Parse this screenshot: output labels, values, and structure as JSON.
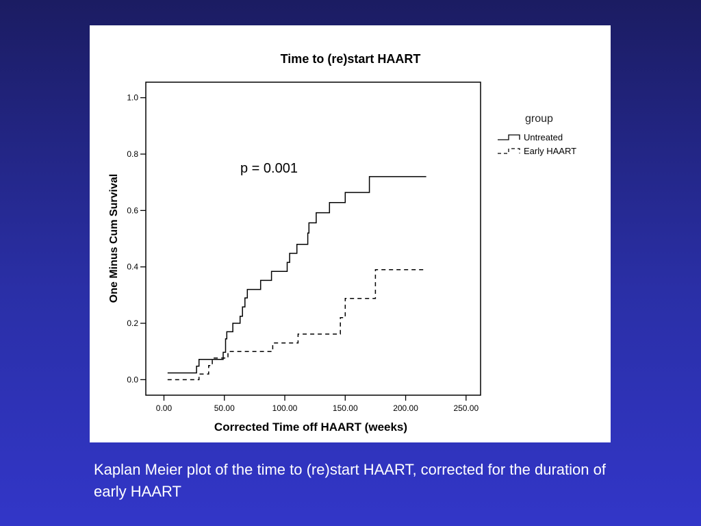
{
  "caption": "Kaplan Meier plot of the time to (re)start HAART, corrected for the duration of early HAART",
  "chart_data": {
    "type": "line",
    "step": true,
    "title": "Time to (re)start HAART",
    "xlabel": "Corrected Time off HAART (weeks)",
    "ylabel": "One Minus Cum Survival",
    "xlim": [
      -15,
      262
    ],
    "ylim": [
      -0.055,
      1.055
    ],
    "xticks": [
      "0.00",
      "50.00",
      "100.00",
      "150.00",
      "200.00",
      "250.00"
    ],
    "xtick_values": [
      0,
      50,
      100,
      150,
      200,
      250
    ],
    "yticks": [
      "0.0",
      "0.2",
      "0.4",
      "0.6",
      "0.8",
      "1.0"
    ],
    "ytick_values": [
      0,
      0.2,
      0.4,
      0.6,
      0.8,
      1.0
    ],
    "annotation": "p = 0.001",
    "legend_title": "group",
    "legend_position": "right",
    "grid": false,
    "series": [
      {
        "name": "Untreated",
        "style": "solid",
        "color": "#000000",
        "points": [
          [
            3,
            0.024
          ],
          [
            27,
            0.024
          ],
          [
            27,
            0.048
          ],
          [
            29,
            0.048
          ],
          [
            29,
            0.072
          ],
          [
            49,
            0.072
          ],
          [
            49,
            0.097
          ],
          [
            51,
            0.097
          ],
          [
            51,
            0.145
          ],
          [
            52,
            0.145
          ],
          [
            52,
            0.17
          ],
          [
            57,
            0.17
          ],
          [
            57,
            0.2
          ],
          [
            63,
            0.2
          ],
          [
            63,
            0.225
          ],
          [
            65,
            0.225
          ],
          [
            65,
            0.258
          ],
          [
            67,
            0.258
          ],
          [
            67,
            0.29
          ],
          [
            69,
            0.29
          ],
          [
            69,
            0.32
          ],
          [
            80,
            0.32
          ],
          [
            80,
            0.352
          ],
          [
            89,
            0.352
          ],
          [
            89,
            0.384
          ],
          [
            102,
            0.384
          ],
          [
            102,
            0.416
          ],
          [
            104,
            0.416
          ],
          [
            104,
            0.448
          ],
          [
            110,
            0.448
          ],
          [
            110,
            0.48
          ],
          [
            119,
            0.48
          ],
          [
            119,
            0.52
          ],
          [
            120,
            0.52
          ],
          [
            120,
            0.556
          ],
          [
            126,
            0.556
          ],
          [
            126,
            0.592
          ],
          [
            137,
            0.592
          ],
          [
            137,
            0.628
          ],
          [
            150,
            0.628
          ],
          [
            150,
            0.664
          ],
          [
            170,
            0.664
          ],
          [
            170,
            0.72
          ],
          [
            217,
            0.72
          ]
        ]
      },
      {
        "name": "Early HAART",
        "style": "dashed",
        "color": "#000000",
        "points": [
          [
            3,
            0.0
          ],
          [
            29,
            0.0
          ],
          [
            29,
            0.02
          ],
          [
            37,
            0.02
          ],
          [
            37,
            0.05
          ],
          [
            40,
            0.05
          ],
          [
            40,
            0.077
          ],
          [
            53,
            0.077
          ],
          [
            53,
            0.1
          ],
          [
            90,
            0.1
          ],
          [
            90,
            0.13
          ],
          [
            111,
            0.13
          ],
          [
            111,
            0.162
          ],
          [
            146,
            0.162
          ],
          [
            146,
            0.22
          ],
          [
            150,
            0.22
          ],
          [
            150,
            0.288
          ],
          [
            175,
            0.288
          ],
          [
            175,
            0.39
          ],
          [
            217,
            0.39
          ]
        ]
      }
    ]
  }
}
